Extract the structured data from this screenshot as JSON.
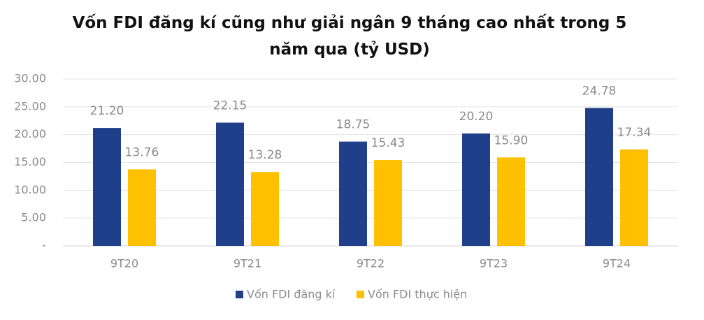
{
  "chart_data": {
    "type": "bar",
    "title": "Vốn FDI đăng kí cũng như giải ngân 9 tháng cao nhất trong 5 năm qua (tỷ USD)",
    "categories": [
      "9T20",
      "9T21",
      "9T22",
      "9T23",
      "9T24"
    ],
    "series": [
      {
        "name": "Vốn FDI đăng kí",
        "color": "#1f3f8a",
        "values": [
          21.2,
          22.15,
          18.75,
          20.2,
          24.78
        ],
        "value_labels": [
          "21.20",
          "22.15",
          "18.75",
          "20.20",
          "24.78"
        ]
      },
      {
        "name": "Vốn FDI thực hiện",
        "color": "#ffc000",
        "values": [
          13.76,
          13.28,
          15.43,
          15.9,
          17.34
        ],
        "value_labels": [
          "13.76",
          "13.28",
          "15.43",
          "15.90",
          "17.34"
        ]
      }
    ],
    "ylim": [
      0,
      30
    ],
    "yticks": [
      {
        "value": 0,
        "label": "-"
      },
      {
        "value": 5,
        "label": "5.00"
      },
      {
        "value": 10,
        "label": "10.00"
      },
      {
        "value": 15,
        "label": "15.00"
      },
      {
        "value": 20,
        "label": "20.00"
      },
      {
        "value": 25,
        "label": "25.00"
      },
      {
        "value": 30,
        "label": "30.00"
      }
    ],
    "grid": true,
    "legend": "bottom"
  }
}
